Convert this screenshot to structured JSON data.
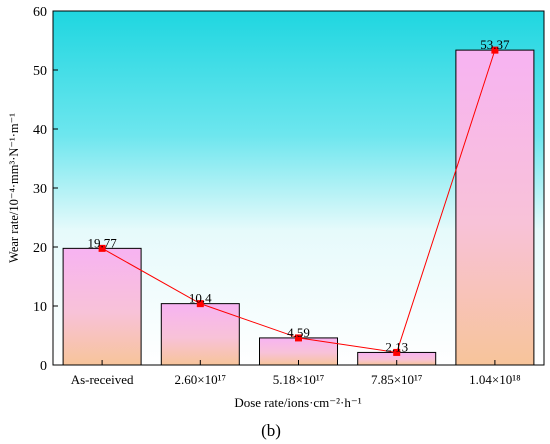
{
  "chart_data": {
    "type": "bar",
    "categories": [
      "As-received",
      "2.60×10¹⁷",
      "5.18×10¹⁷",
      "7.85×10¹⁷",
      "1.04×10¹⁸"
    ],
    "values": [
      19.77,
      10.4,
      4.59,
      2.13,
      53.37
    ],
    "value_labels": [
      "19.77",
      "10.4",
      "4.59",
      "2.13",
      "53.37"
    ],
    "overlay_line": {
      "values": [
        19.77,
        10.4,
        4.59,
        2.13,
        53.37
      ],
      "color": "#ff0000",
      "marker": "square"
    },
    "xlabel": "Dose rate/ions·cm⁻²·h⁻¹",
    "ylabel": "Wear rate/10⁻⁴·mm³·N⁻¹·m⁻¹",
    "ylim": [
      0,
      60
    ],
    "yticks": [
      "0",
      "10",
      "20",
      "30",
      "40",
      "50",
      "60"
    ],
    "grid": false,
    "colors": {
      "background_top": "#1fd6e0",
      "background_bottom": "#ffffff",
      "bar_top": "#f7b3f2",
      "bar_bottom": "#f7c49a",
      "line": "#ff0000"
    },
    "panel_label": "(b)"
  }
}
